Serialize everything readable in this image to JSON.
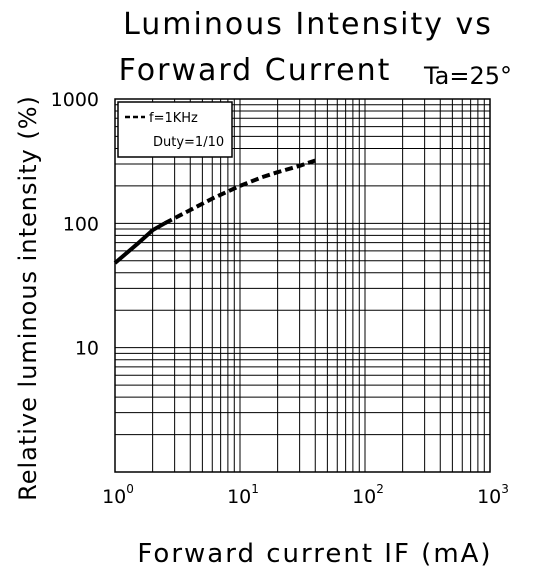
{
  "chart_data": {
    "type": "line",
    "title_line1": "Luminous Intensity vs",
    "title_line2": "Forward Current",
    "condition": "Ta=25°",
    "xlabel": "Forward current IF (mA)",
    "ylabel": "Relative luminous intensity (%)",
    "x_scale": "log",
    "y_scale": "log",
    "xlim": [
      1,
      1000
    ],
    "ylim": [
      1,
      1000
    ],
    "grid": true,
    "x_ticks": [
      {
        "value": 1,
        "base": "10",
        "exp": "0"
      },
      {
        "value": 10,
        "base": "10",
        "exp": "1"
      },
      {
        "value": 100,
        "base": "10",
        "exp": "2"
      },
      {
        "value": 1000,
        "base": "10",
        "exp": "3"
      }
    ],
    "y_ticks": [
      {
        "value": 10,
        "label": "10"
      },
      {
        "value": 100,
        "label": "100"
      },
      {
        "value": 1000,
        "label": "1000"
      }
    ],
    "legend": {
      "placement": "top-left",
      "line1": "f=1KHz",
      "line2": "Duty=1/10"
    },
    "series": [
      {
        "style": "solid",
        "color": "#000000",
        "x": [
          1.0,
          1.5,
          2.0,
          2.5
        ],
        "y": [
          48,
          68,
          88,
          100
        ]
      },
      {
        "style": "dashed",
        "color": "#000000",
        "x": [
          2.5,
          4,
          6,
          10,
          15,
          20,
          30,
          40
        ],
        "y": [
          100,
          128,
          158,
          200,
          235,
          258,
          290,
          320
        ]
      }
    ]
  }
}
